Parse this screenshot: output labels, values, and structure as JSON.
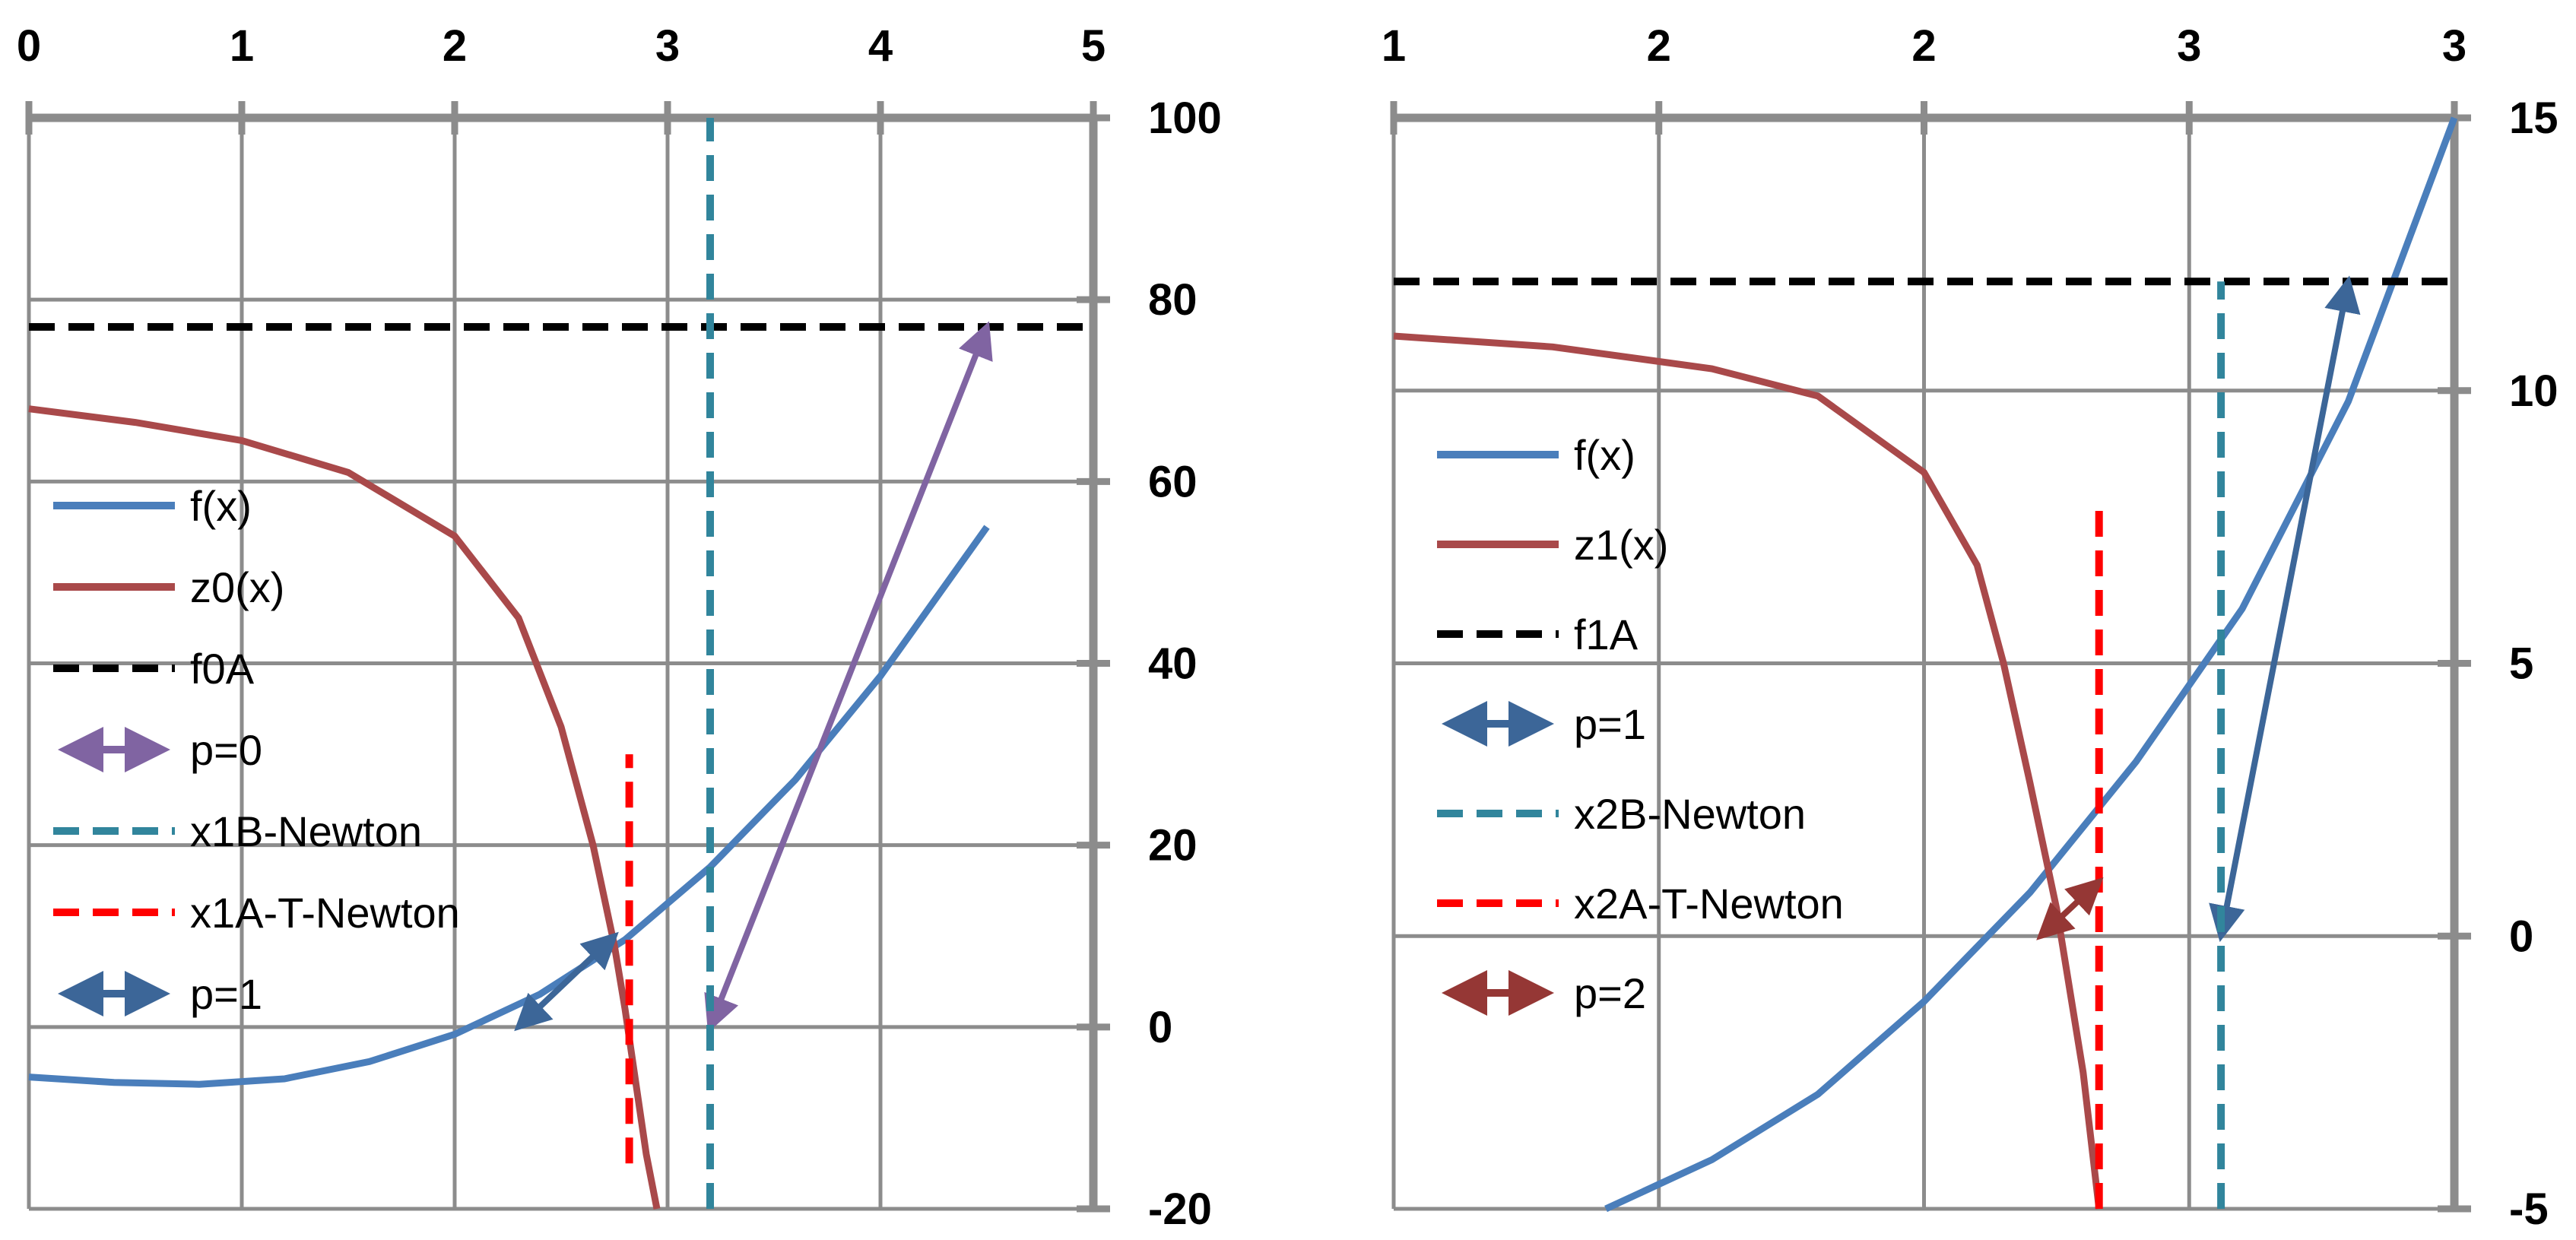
{
  "chart_data": [
    {
      "type": "line",
      "title": "",
      "xlabel": "",
      "ylabel": "",
      "xlim": [
        0,
        5
      ],
      "ylim": [
        -20,
        100
      ],
      "x_ticks": [
        0,
        1,
        2,
        3,
        4,
        5
      ],
      "x_tick_labels": [
        "0",
        "1",
        "2",
        "3",
        "4",
        "5"
      ],
      "y_ticks": [
        -20,
        0,
        20,
        40,
        60,
        80,
        100
      ],
      "y_tick_labels": [
        "-20",
        "0",
        "20",
        "40",
        "60",
        "80",
        "100"
      ],
      "x_axis_position": "top",
      "y_axis_position": "right",
      "grid": true,
      "legend_position": "left",
      "series": [
        {
          "name": "f(x)",
          "style": "solid",
          "color": "#4A7EBB",
          "x": [
            0,
            0.4,
            0.8,
            1.2,
            1.6,
            2.0,
            2.4,
            2.8,
            3.2,
            3.6,
            4.0,
            4.5
          ],
          "y": [
            -5.5,
            -6.1,
            -6.3,
            -5.7,
            -3.8,
            -0.8,
            3.6,
            9.6,
            17.6,
            27.2,
            38.6,
            55.0
          ]
        },
        {
          "name": "z0(x)",
          "style": "solid",
          "color": "#A9494A",
          "x": [
            0,
            0.5,
            1.0,
            1.5,
            2.0,
            2.3,
            2.5,
            2.65,
            2.75,
            2.8,
            2.85,
            2.9,
            2.95
          ],
          "y": [
            68.0,
            66.5,
            64.5,
            61.0,
            54.0,
            45.0,
            33.0,
            20.0,
            9.0,
            2.0,
            -6.0,
            -14.0,
            -20.0
          ]
        },
        {
          "name": "f0A",
          "style": "dashed",
          "color": "#000000",
          "x": [
            0,
            5
          ],
          "y": [
            77,
            77
          ]
        },
        {
          "name": "p=0",
          "style": "double-arrow",
          "color": "#8064A2",
          "x": [
            3.2,
            4.5
          ],
          "y": [
            0,
            77
          ]
        },
        {
          "name": "x1B-Newton",
          "style": "dashed",
          "color": "#31859C",
          "x": [
            3.2,
            3.2
          ],
          "y": [
            -20,
            100
          ]
        },
        {
          "name": "x1A-T-Newton",
          "style": "dashed",
          "color": "#FF0000",
          "x": [
            2.82,
            2.82
          ],
          "y": [
            -15,
            30
          ]
        },
        {
          "name": "p=1",
          "style": "double-arrow",
          "color": "#3C6698",
          "x": [
            2.3,
            2.75
          ],
          "y": [
            0,
            10
          ]
        }
      ]
    },
    {
      "type": "line",
      "title": "",
      "xlabel": "",
      "ylabel": "",
      "xlim": [
        1,
        3
      ],
      "ylim": [
        -5,
        15
      ],
      "x_ticks": [
        1,
        1.5,
        2,
        2.5,
        3
      ],
      "x_tick_labels": [
        "1",
        "2",
        "2",
        "3",
        "3"
      ],
      "y_ticks": [
        -5,
        0,
        5,
        10,
        15
      ],
      "y_tick_labels": [
        "-5",
        "0",
        "5",
        "10",
        "15"
      ],
      "x_axis_position": "top",
      "y_axis_position": "right",
      "grid": true,
      "legend_position": "left",
      "series": [
        {
          "name": "f(x)",
          "style": "solid",
          "color": "#4A7EBB",
          "x": [
            1.4,
            1.6,
            1.8,
            2.0,
            2.2,
            2.4,
            2.6,
            2.8,
            3.0
          ],
          "y": [
            -5.0,
            -4.1,
            -2.9,
            -1.2,
            0.8,
            3.2,
            6.0,
            9.8,
            15.0
          ]
        },
        {
          "name": "z1(x)",
          "style": "solid",
          "color": "#A9494A",
          "x": [
            1.0,
            1.3,
            1.6,
            1.8,
            2.0,
            2.1,
            2.15,
            2.2,
            2.25,
            2.3,
            2.33
          ],
          "y": [
            11.0,
            10.8,
            10.4,
            9.9,
            8.5,
            6.8,
            5.0,
            2.8,
            0.5,
            -2.5,
            -5.0
          ]
        },
        {
          "name": "f1A",
          "style": "dashed",
          "color": "#000000",
          "x": [
            1,
            3
          ],
          "y": [
            12,
            12
          ]
        },
        {
          "name": "p=1",
          "style": "double-arrow",
          "color": "#3C6698",
          "x": [
            2.56,
            2.8
          ],
          "y": [
            0,
            12
          ]
        },
        {
          "name": "x2B-Newton",
          "style": "dashed",
          "color": "#31859C",
          "x": [
            2.56,
            2.56
          ],
          "y": [
            -5,
            12
          ]
        },
        {
          "name": "x2A-T-Newton",
          "style": "dashed",
          "color": "#FF0000",
          "x": [
            2.33,
            2.33
          ],
          "y": [
            -5,
            8
          ]
        },
        {
          "name": "p=2",
          "style": "double-arrow",
          "color": "#953735",
          "x": [
            2.22,
            2.33
          ],
          "y": [
            0,
            1
          ]
        }
      ]
    }
  ],
  "legends": [
    {
      "items": [
        {
          "label": "f(x)",
          "kind": "line",
          "color": "#4A7EBB"
        },
        {
          "label": "z0(x)",
          "kind": "line",
          "color": "#A9494A"
        },
        {
          "label": "f0A",
          "kind": "dash",
          "color": "#000000"
        },
        {
          "label": "p=0",
          "kind": "arrow",
          "color": "#8064A2"
        },
        {
          "label": "x1B-Newton",
          "kind": "dash",
          "color": "#31859C"
        },
        {
          "label": "x1A-T-Newton",
          "kind": "dash",
          "color": "#FF0000"
        },
        {
          "label": "p=1",
          "kind": "arrow",
          "color": "#3C6698"
        }
      ]
    },
    {
      "items": [
        {
          "label": "f(x)",
          "kind": "line",
          "color": "#4A7EBB"
        },
        {
          "label": "z1(x)",
          "kind": "line",
          "color": "#A9494A"
        },
        {
          "label": "f1A",
          "kind": "dash",
          "color": "#000000"
        },
        {
          "label": "p=1",
          "kind": "arrow",
          "color": "#3C6698"
        },
        {
          "label": "x2B-Newton",
          "kind": "dash",
          "color": "#31859C"
        },
        {
          "label": "x2A-T-Newton",
          "kind": "dash",
          "color": "#FF0000"
        },
        {
          "label": "p=2",
          "kind": "arrow",
          "color": "#953735"
        }
      ]
    }
  ],
  "colors": {
    "grid": "#8C8C8C",
    "axis": "#8C8C8C",
    "text": "#000000"
  }
}
